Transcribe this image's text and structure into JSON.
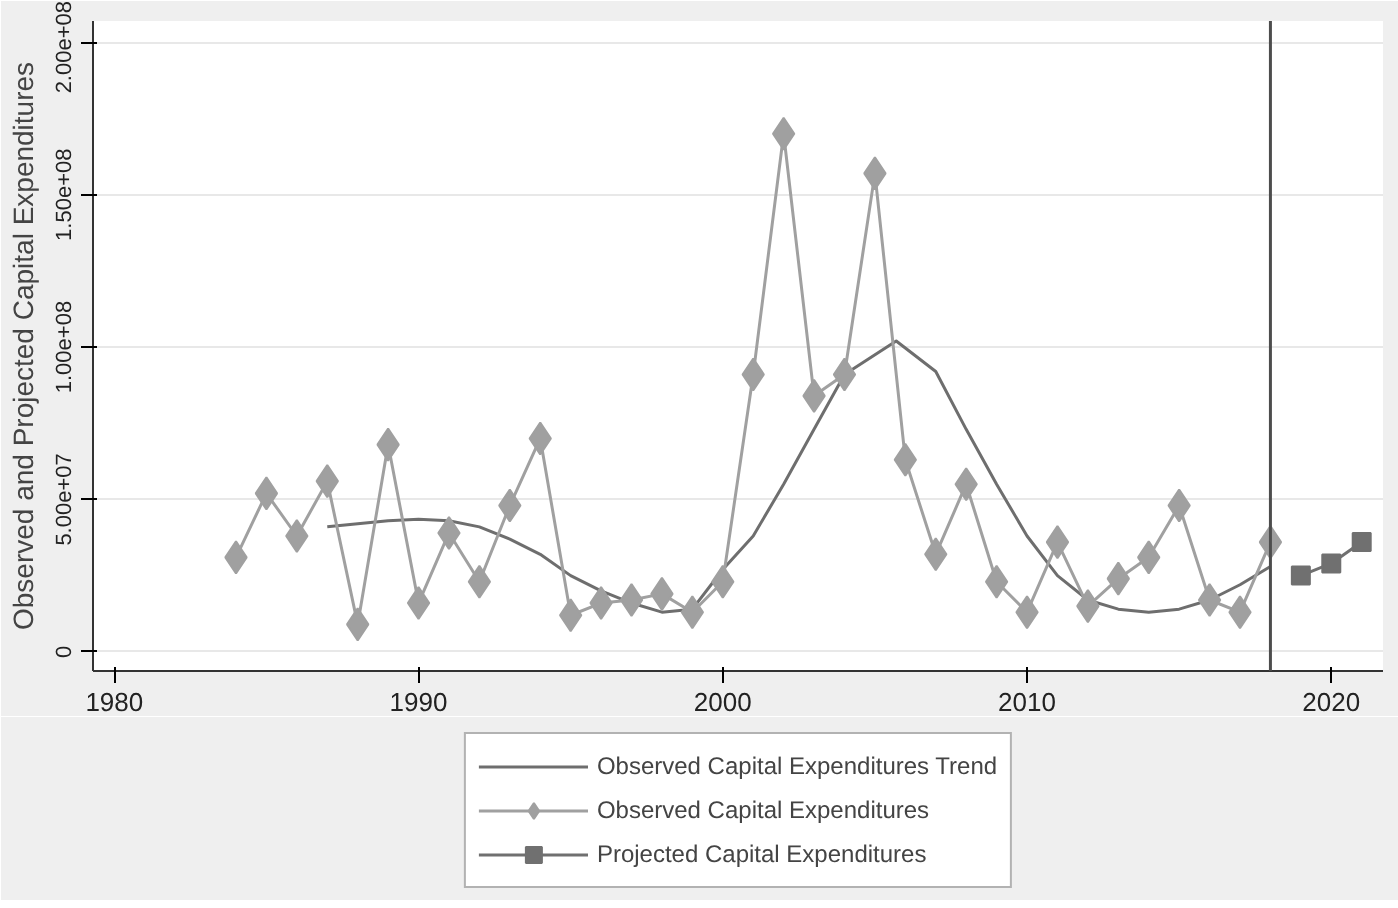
{
  "chart_data": {
    "type": "line",
    "ylabel": "Observed and Projected Capital Expenditures",
    "xlim": [
      1979.3,
      2021.7
    ],
    "xticks": [
      1980,
      1990,
      2000,
      2010,
      2020
    ],
    "ylim": [
      -6300000,
      207000000
    ],
    "yticks": [
      {
        "value": 0,
        "label": "0"
      },
      {
        "value": 50000000,
        "label": "5.00e+07"
      },
      {
        "value": 100000000,
        "label": "1.00e+08"
      },
      {
        "value": 150000000,
        "label": "1.50e+08"
      },
      {
        "value": 200000000,
        "label": "2.00e+08"
      }
    ],
    "grid": "y",
    "legend": "bottom",
    "ref_lines": [
      {
        "axis": "x",
        "value": 2018,
        "label": null,
        "color": "#4d4d4d"
      }
    ],
    "series": [
      {
        "name": "Observed Capital Expenditures Trend",
        "type": "line",
        "marker": "none",
        "color": "#6e6e6e",
        "x": [
          1987,
          1988,
          1989,
          1990,
          1991,
          1992,
          1993,
          1994,
          1995,
          1996,
          1997,
          1998,
          1999,
          2000,
          2001,
          2002,
          2003,
          2004,
          2005.7,
          2007,
          2008,
          2009,
          2010,
          2011,
          2012,
          2013,
          2014,
          2015,
          2016,
          2017,
          2018
        ],
        "values": [
          41000000,
          42000000,
          43000000,
          43500000,
          43000000,
          41000000,
          37000000,
          32000000,
          25000000,
          20000000,
          16000000,
          13000000,
          14000000,
          27000000,
          38000000,
          55000000,
          73000000,
          91000000,
          102000000,
          92000000,
          73000000,
          55000000,
          38000000,
          25000000,
          17000000,
          14000000,
          13000000,
          14000000,
          17000000,
          22000000,
          28000000
        ]
      },
      {
        "name": "Observed Capital Expenditures",
        "type": "line",
        "marker": "diamond",
        "color": "#a0a0a0",
        "x": [
          1984,
          1985,
          1986,
          1987,
          1988,
          1989,
          1990,
          1991,
          1992,
          1993,
          1994,
          1995,
          1996,
          1997,
          1998,
          1999,
          2000,
          2001,
          2002,
          2003,
          2004,
          2005,
          2006,
          2007,
          2008,
          2009,
          2010,
          2011,
          2012,
          2013,
          2014,
          2015,
          2016,
          2017,
          2018
        ],
        "values": [
          31000000,
          52000000,
          38000000,
          56000000,
          9000000,
          68000000,
          16000000,
          39000000,
          23000000,
          48000000,
          70000000,
          12000000,
          16000000,
          17000000,
          19000000,
          13000000,
          23000000,
          91000000,
          170000000,
          84000000,
          91000000,
          157000000,
          63000000,
          32000000,
          55000000,
          23000000,
          13000000,
          36000000,
          15000000,
          24000000,
          31000000,
          48000000,
          17000000,
          13000000,
          36000000
        ]
      },
      {
        "name": "Projected Capital Expenditures",
        "type": "line",
        "marker": "square",
        "color": "#707070",
        "x": [
          2019,
          2020,
          2021
        ],
        "values": [
          25000000,
          29000000,
          36000000
        ]
      }
    ]
  }
}
